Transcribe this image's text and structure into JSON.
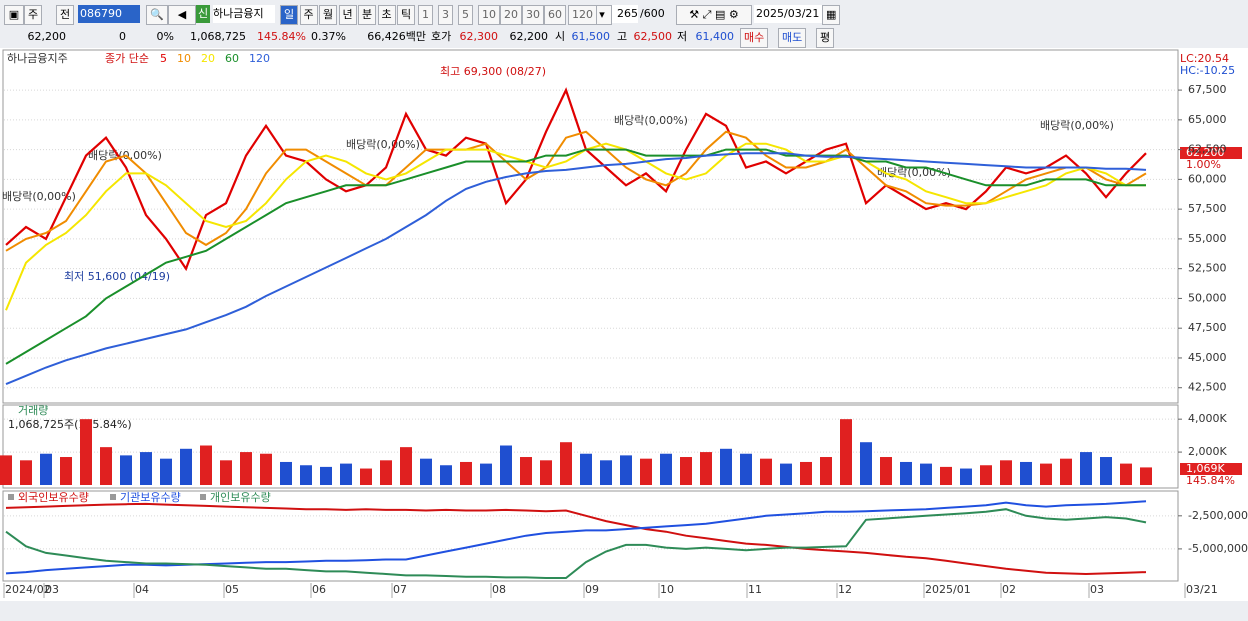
{
  "toolbar": {
    "market": "주",
    "scope": "전",
    "code": "086790",
    "badge": "신",
    "name": "하나금융지",
    "periods": [
      "일",
      "주",
      "월",
      "년",
      "분",
      "초",
      "틱"
    ],
    "intervals": [
      "1",
      "3",
      "5",
      "10",
      "20",
      "30",
      "60",
      "120"
    ],
    "count": "265",
    "max": "/600",
    "date": "2025/03/21"
  },
  "quote": {
    "price": "62,200",
    "change": "0",
    "change_rate": "0%",
    "volume": "1,068,725",
    "volume_rate": "145.84%",
    "turnover": "0.37%",
    "amount": "66,426백만",
    "ask_label": "호가",
    "ask": "62,300",
    "bid": "62,200",
    "open_label": "시",
    "open": "61,500",
    "high_label": "고",
    "high": "62,500",
    "low_label": "저",
    "low": "61,400",
    "buy": "매수",
    "sell": "매도",
    "avg": "평"
  },
  "x_axis_labels": [
    "2024/02",
    "03",
    "04",
    "05",
    "06",
    "07",
    "08",
    "09",
    "10",
    "11",
    "12",
    "2025/01",
    "02",
    "03",
    "03/21"
  ],
  "chart_data": [
    {
      "type": "line",
      "title": "하나금융지주",
      "legend_prefix": "종가 단순",
      "lc": "LC:20.54",
      "hc": "HC:-10.25",
      "last_price": "62,200",
      "last_rate": "1.00%",
      "high_note": "최고 69,300 (08/27)",
      "low_note": "최저 51,600 (04/19)",
      "dividend_note": "배당락(0,00%)",
      "ylim": [
        41300,
        70700
      ],
      "yticks": [
        {
          "value": 42500,
          "label": "42,500"
        },
        {
          "value": 45000,
          "label": "45,000"
        },
        {
          "value": 47500,
          "label": "47,500"
        },
        {
          "value": 50000,
          "label": "50,000"
        },
        {
          "value": 52500,
          "label": "52,500"
        },
        {
          "value": 55000,
          "label": "55,000"
        },
        {
          "value": 57500,
          "label": "57,500"
        },
        {
          "value": 60000,
          "label": "60,000"
        },
        {
          "value": 62500,
          "label": "62,500"
        },
        {
          "value": 65000,
          "label": "65,000"
        },
        {
          "value": 67500,
          "label": "67,500"
        }
      ],
      "series": [
        {
          "name": "5",
          "color": "#e00000",
          "values": [
            54500,
            56000,
            55000,
            58500,
            62000,
            63500,
            61000,
            57000,
            55000,
            52500,
            57000,
            58000,
            62000,
            64500,
            62000,
            61500,
            60000,
            59000,
            59500,
            61000,
            65500,
            62500,
            62000,
            63500,
            63000,
            58000,
            60000,
            64000,
            67500,
            62500,
            61000,
            59500,
            60500,
            59000,
            62500,
            65500,
            64500,
            61000,
            61500,
            60500,
            61500,
            62500,
            63000,
            58000,
            59500,
            58500,
            57500,
            58000,
            57500,
            59000,
            61000,
            60500,
            61000,
            62000,
            60500,
            58500,
            60500,
            62200
          ]
        },
        {
          "name": "10",
          "color": "#f08c00",
          "values": [
            54000,
            55000,
            55500,
            56500,
            59000,
            61500,
            62000,
            60500,
            58000,
            55500,
            54500,
            55500,
            57500,
            60500,
            62500,
            62500,
            61500,
            60500,
            59500,
            59500,
            61000,
            62500,
            62500,
            62500,
            63000,
            61500,
            60000,
            61000,
            63500,
            64000,
            62500,
            61000,
            60000,
            59500,
            60500,
            62500,
            64000,
            63500,
            62000,
            61000,
            61000,
            61500,
            62500,
            61000,
            59500,
            59000,
            58000,
            57800,
            57800,
            58000,
            59000,
            60000,
            60500,
            61000,
            61000,
            60000,
            59500,
            60500
          ]
        },
        {
          "name": "20",
          "color": "#f5e600",
          "values": [
            49000,
            53000,
            54500,
            55500,
            57000,
            59000,
            60500,
            60500,
            59500,
            58000,
            56500,
            56000,
            56500,
            58000,
            60000,
            61500,
            62000,
            61500,
            60500,
            60000,
            60500,
            61500,
            62500,
            62500,
            62500,
            62000,
            61500,
            61000,
            61500,
            62500,
            63000,
            62500,
            61500,
            60500,
            60000,
            60500,
            62000,
            63000,
            63000,
            62500,
            61500,
            61500,
            62000,
            61500,
            60500,
            60000,
            59000,
            58500,
            58000,
            58000,
            58500,
            59000,
            59500,
            60500,
            61000,
            60500,
            59500,
            59500
          ]
        },
        {
          "name": "60",
          "color": "#1a8f2a",
          "values": [
            44500,
            45500,
            46500,
            47500,
            48500,
            50000,
            51000,
            52000,
            53000,
            53500,
            54000,
            55000,
            56000,
            57000,
            58000,
            58500,
            59000,
            59500,
            59500,
            59500,
            60000,
            60500,
            61000,
            61500,
            61500,
            61500,
            61500,
            62000,
            62000,
            62500,
            62500,
            62500,
            62000,
            62000,
            62000,
            62000,
            62500,
            62500,
            62500,
            62000,
            62000,
            62000,
            62000,
            61500,
            61500,
            61000,
            61000,
            60500,
            60000,
            59500,
            59500,
            59500,
            60000,
            60000,
            60000,
            59500,
            59500,
            59500
          ]
        },
        {
          "name": "120",
          "color": "#2f5fd8",
          "values": [
            42800,
            43500,
            44200,
            44800,
            45300,
            45800,
            46200,
            46600,
            47000,
            47400,
            48000,
            48600,
            49300,
            50200,
            51000,
            51800,
            52600,
            53400,
            54200,
            55000,
            56000,
            57000,
            58200,
            59200,
            59800,
            60200,
            60500,
            60700,
            60800,
            61000,
            61200,
            61300,
            61500,
            61700,
            61800,
            62000,
            62100,
            62200,
            62200,
            62200,
            62000,
            61900,
            61900,
            61800,
            61700,
            61600,
            61500,
            61400,
            61300,
            61200,
            61100,
            61000,
            61000,
            61000,
            61000,
            60900,
            60900,
            60800
          ]
        }
      ]
    },
    {
      "type": "bar",
      "title": "거래량",
      "note": "1,068,725주(145.84%)",
      "last_value": "1,069K",
      "last_rate": "145.84%",
      "up_color": "#e02020",
      "down_color": "#1f4fd0",
      "ylim": [
        0,
        4800000
      ],
      "yticks": [
        {
          "value": 2000000,
          "label": "2,000K"
        },
        {
          "value": 4000000,
          "label": "4,000K"
        }
      ],
      "values": [
        1800000,
        1500000,
        1900000,
        1700000,
        4000000,
        2300000,
        1800000,
        2000000,
        1600000,
        2200000,
        2400000,
        1500000,
        2000000,
        1900000,
        1400000,
        1200000,
        1100000,
        1300000,
        1000000,
        1500000,
        2300000,
        1600000,
        1200000,
        1400000,
        1300000,
        2400000,
        1700000,
        1500000,
        2600000,
        1900000,
        1500000,
        1800000,
        1600000,
        1900000,
        1700000,
        2000000,
        2200000,
        1900000,
        1600000,
        1300000,
        1400000,
        1700000,
        4000000,
        2600000,
        1700000,
        1400000,
        1300000,
        1100000,
        1000000,
        1200000,
        1500000,
        1400000,
        1300000,
        1600000,
        2000000,
        1700000,
        1300000,
        1068725
      ]
    },
    {
      "type": "line",
      "ylim": [
        -7350000,
        -700000
      ],
      "yticks": [
        {
          "value": -2500000,
          "label": "-2,500,000"
        },
        {
          "value": -5000000,
          "label": "-5,000,000"
        }
      ],
      "series": [
        {
          "name": "외국인보유수량",
          "color": "#d01010",
          "values": [
            -1900000,
            -1850000,
            -1800000,
            -1750000,
            -1700000,
            -1650000,
            -1620000,
            -1600000,
            -1650000,
            -1700000,
            -1750000,
            -1800000,
            -1850000,
            -1900000,
            -1950000,
            -2000000,
            -2000000,
            -2050000,
            -2000000,
            -2050000,
            -2050000,
            -2100000,
            -2050000,
            -2100000,
            -2100000,
            -2050000,
            -2100000,
            -2150000,
            -2100000,
            -2500000,
            -2900000,
            -3200000,
            -3500000,
            -3700000,
            -4000000,
            -4200000,
            -4400000,
            -4600000,
            -4700000,
            -4850000,
            -5000000,
            -5100000,
            -5200000,
            -5300000,
            -5450000,
            -5600000,
            -5700000,
            -5900000,
            -6100000,
            -6300000,
            -6500000,
            -6650000,
            -6800000,
            -6850000,
            -6900000,
            -6850000,
            -6800000,
            -6750000
          ]
        },
        {
          "name": "기관보유수량",
          "color": "#2050e0",
          "values": [
            -6850000,
            -6750000,
            -6600000,
            -6500000,
            -6400000,
            -6300000,
            -6200000,
            -6200000,
            -6250000,
            -6200000,
            -6150000,
            -6100000,
            -6050000,
            -6000000,
            -6000000,
            -5950000,
            -5900000,
            -5900000,
            -5850000,
            -5800000,
            -5800000,
            -5500000,
            -5200000,
            -4900000,
            -4600000,
            -4300000,
            -4000000,
            -3800000,
            -3700000,
            -3600000,
            -3600000,
            -3500000,
            -3400000,
            -3300000,
            -3200000,
            -3100000,
            -2900000,
            -2700000,
            -2500000,
            -2400000,
            -2300000,
            -2200000,
            -2200000,
            -2150000,
            -2100000,
            -2050000,
            -2000000,
            -1900000,
            -1800000,
            -1700000,
            -1500000,
            -1700000,
            -1800000,
            -1700000,
            -1650000,
            -1600000,
            -1500000,
            -1400000
          ]
        },
        {
          "name": "개인보유수량",
          "color": "#2e8b57",
          "values": [
            -3700000,
            -4800000,
            -5300000,
            -5500000,
            -5700000,
            -5900000,
            -6000000,
            -6100000,
            -6100000,
            -6150000,
            -6200000,
            -6300000,
            -6400000,
            -6500000,
            -6500000,
            -6600000,
            -6700000,
            -6700000,
            -6800000,
            -6900000,
            -7000000,
            -7000000,
            -7050000,
            -7100000,
            -7100000,
            -7150000,
            -7150000,
            -7200000,
            -7200000,
            -6000000,
            -5200000,
            -4700000,
            -4700000,
            -4900000,
            -5000000,
            -4900000,
            -5000000,
            -5100000,
            -5000000,
            -4900000,
            -4900000,
            -4850000,
            -4800000,
            -2800000,
            -2700000,
            -2600000,
            -2500000,
            -2400000,
            -2300000,
            -2200000,
            -2000000,
            -2500000,
            -2700000,
            -2800000,
            -2700000,
            -2600000,
            -2700000,
            -3000000
          ]
        }
      ]
    }
  ]
}
